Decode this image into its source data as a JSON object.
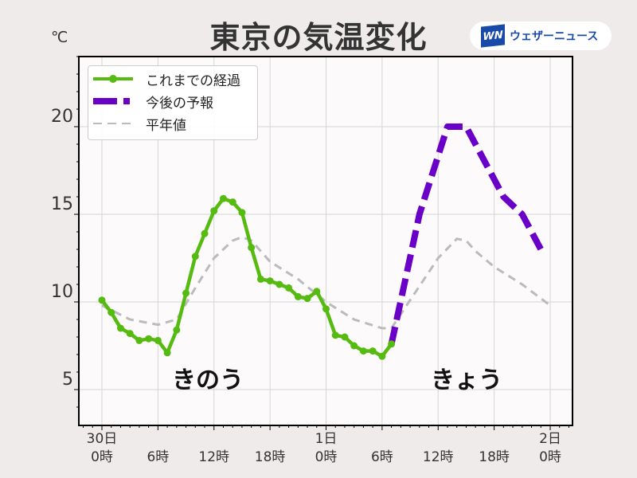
{
  "header": {
    "title": "東京の気温変化",
    "unit": "℃",
    "logo_mark": "WN",
    "logo_text": "ウェザーニュース"
  },
  "legend": {
    "items": [
      {
        "label": "これまでの経過",
        "color": "#55bb11",
        "style": "solid-marker"
      },
      {
        "label": "今後の予報",
        "color": "#6a00c8",
        "style": "dashed-thick"
      },
      {
        "label": "平年値",
        "color": "#bbbbbb",
        "style": "dashed-thin"
      }
    ]
  },
  "annotations": {
    "yesterday": "きのう",
    "today": "きょう"
  },
  "axes": {
    "y_ticks": [
      "5",
      "10",
      "15",
      "20"
    ],
    "x_ticks": [
      {
        "top": "30日",
        "bottom": "0時"
      },
      {
        "top": "",
        "bottom": "6時"
      },
      {
        "top": "",
        "bottom": "12時"
      },
      {
        "top": "",
        "bottom": "18時"
      },
      {
        "top": "1日",
        "bottom": "0時"
      },
      {
        "top": "",
        "bottom": "6時"
      },
      {
        "top": "",
        "bottom": "12時"
      },
      {
        "top": "",
        "bottom": "18時"
      },
      {
        "top": "2日",
        "bottom": "0時"
      }
    ]
  },
  "chart_data": {
    "type": "line",
    "title": "東京の気温変化",
    "xlabel": "",
    "ylabel": "℃",
    "ylim": [
      3,
      24.6
    ],
    "xlim": [
      -2.4,
      50.4
    ],
    "x_unit": "hours from 30日 0時",
    "grid": true,
    "legend_position": "upper-left",
    "series": [
      {
        "name": "これまでの経過",
        "color": "#55bb11",
        "x": [
          0,
          1,
          2,
          3,
          4,
          5,
          6,
          7,
          8,
          9,
          10,
          11,
          12,
          13,
          14,
          15,
          16,
          17,
          18,
          19,
          20,
          21,
          22,
          23,
          24,
          25,
          26,
          27,
          28,
          29,
          30,
          31
        ],
        "values": [
          10.1,
          9.4,
          8.5,
          8.2,
          7.8,
          7.9,
          7.8,
          7.1,
          8.4,
          10.5,
          12.6,
          13.9,
          15.2,
          15.9,
          15.7,
          15.1,
          13.1,
          11.3,
          11.2,
          11.0,
          10.8,
          10.3,
          10.2,
          10.6,
          9.6,
          8.1,
          8.0,
          7.5,
          7.2,
          7.2,
          6.9,
          7.6
        ]
      },
      {
        "name": "今後の予報",
        "color": "#6a00c8",
        "x": [
          31,
          34,
          37,
          39,
          41,
          43,
          45,
          47
        ],
        "values": [
          7.6,
          15.0,
          20.0,
          20.0,
          18.0,
          16.0,
          15.0,
          13.0
        ]
      },
      {
        "name": "平年値",
        "color": "#bbbbbb",
        "x": [
          0,
          3,
          6,
          8,
          10,
          12,
          14,
          15,
          16,
          18,
          21,
          24,
          27,
          30,
          31,
          32,
          34,
          36,
          38,
          39,
          40,
          42,
          45,
          48
        ],
        "values": [
          9.8,
          9.0,
          8.7,
          9.0,
          10.8,
          12.5,
          13.5,
          13.7,
          13.5,
          12.3,
          11.3,
          10.0,
          9.0,
          8.5,
          8.5,
          9.3,
          10.9,
          12.5,
          13.6,
          13.5,
          12.9,
          12.0,
          11.0,
          9.8
        ]
      }
    ]
  }
}
